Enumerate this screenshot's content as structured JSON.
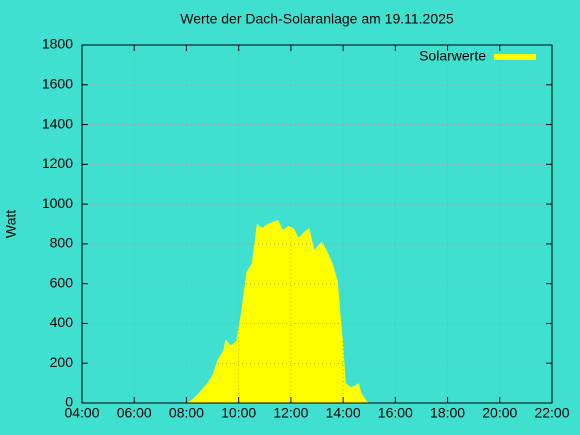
{
  "chart_data": {
    "type": "area",
    "title": "Werte der Dach-Solaranlage am 19.11.2025",
    "y_label": "Watt",
    "x": [
      8.0,
      8.2,
      8.4,
      8.6,
      8.8,
      9.0,
      9.2,
      9.4,
      9.5,
      9.7,
      9.9,
      10.0,
      10.1,
      10.2,
      10.3,
      10.5,
      10.7,
      10.9,
      11.1,
      11.3,
      11.5,
      11.7,
      11.9,
      12.1,
      12.3,
      12.5,
      12.7,
      12.9,
      13.1,
      13.2,
      13.4,
      13.6,
      13.8,
      13.9,
      14.0,
      14.1,
      14.3,
      14.5,
      14.6,
      14.7,
      14.9,
      15.0
    ],
    "series": [
      {
        "name": "Solarwerte",
        "color": "#ffff00",
        "values": [
          0,
          15,
          40,
          70,
          100,
          140,
          220,
          260,
          320,
          290,
          310,
          380,
          460,
          560,
          660,
          700,
          900,
          880,
          900,
          910,
          920,
          870,
          890,
          880,
          830,
          860,
          880,
          770,
          800,
          810,
          760,
          700,
          610,
          440,
          300,
          100,
          80,
          90,
          100,
          50,
          10,
          0
        ]
      }
    ],
    "xlim": [
      4,
      22
    ],
    "xticks": [
      {
        "value": 4,
        "label": "04:00"
      },
      {
        "value": 6,
        "label": "06:00"
      },
      {
        "value": 8,
        "label": "08:00"
      },
      {
        "value": 10,
        "label": "10:00"
      },
      {
        "value": 12,
        "label": "12:00"
      },
      {
        "value": 14,
        "label": "14:00"
      },
      {
        "value": 16,
        "label": "16:00"
      },
      {
        "value": 18,
        "label": "18:00"
      },
      {
        "value": 20,
        "label": "20:00"
      },
      {
        "value": 22,
        "label": "22:00"
      }
    ],
    "ylim": [
      0,
      1800
    ],
    "yticks": [
      0,
      200,
      400,
      600,
      800,
      1000,
      1200,
      1400,
      1600,
      1800
    ],
    "grid": true,
    "legend": "top-right"
  }
}
